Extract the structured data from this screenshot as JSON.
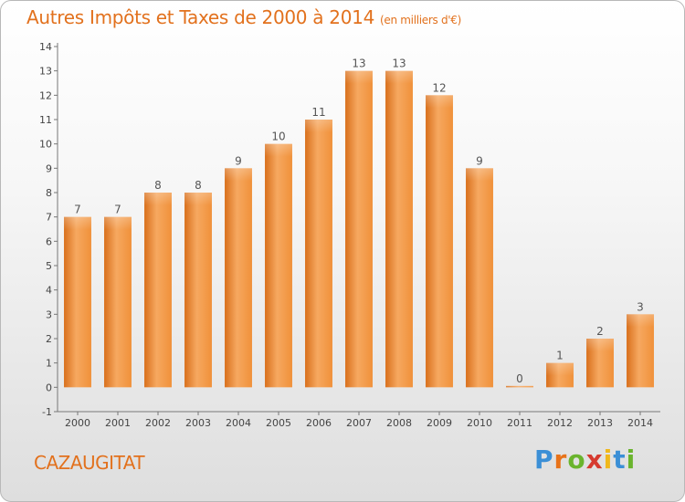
{
  "chart_data": {
    "type": "bar",
    "title": "Autres Impôts et Taxes de 2000 à 2014",
    "subtitle": "(en milliers d'€)",
    "categories": [
      "2000",
      "2001",
      "2002",
      "2003",
      "2004",
      "2005",
      "2006",
      "2007",
      "2008",
      "2009",
      "2010",
      "2011",
      "2012",
      "2013",
      "2014"
    ],
    "values": [
      7,
      7,
      8,
      8,
      9,
      10,
      11,
      13,
      13,
      12,
      9,
      0,
      1,
      2,
      3
    ],
    "data_labels": [
      "7",
      "7",
      "8",
      "8",
      "9",
      "10",
      "11",
      "13",
      "13",
      "12",
      "9",
      "0",
      "1",
      "2",
      "3"
    ],
    "y_ticks": [
      "-1",
      "0",
      "1",
      "2",
      "3",
      "4",
      "5",
      "6",
      "7",
      "8",
      "9",
      "10",
      "11",
      "12",
      "13",
      "14"
    ],
    "ylim": [
      -1,
      14
    ],
    "xlabel": "",
    "ylabel": "",
    "grid": false,
    "legend": "none",
    "bar_color": "#f0913a",
    "bar_color_light": "#f6a860",
    "bar_color_dark": "#d9701c",
    "title_color": "#e2711d"
  },
  "footer": {
    "place": "CAZAUGITAT",
    "logo_letters": [
      "P",
      "r",
      "o",
      "x",
      "i",
      "t",
      "i"
    ],
    "logo_colors": [
      "#3b8fd6",
      "#e8731a",
      "#6ab42d",
      "#d63a2f",
      "#f0b81c",
      "#3b8fd6",
      "#6ab42d"
    ]
  }
}
